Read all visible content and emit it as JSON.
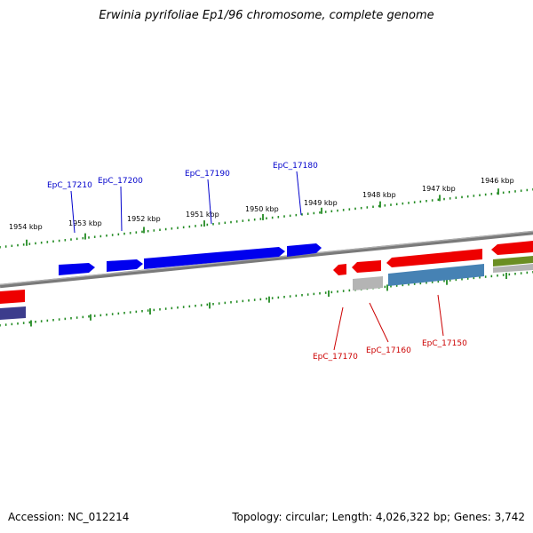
{
  "title": "Erwinia pyrifoliae Ep1/96 chromosome, complete genome",
  "footer": {
    "accession": "Accession: NC_012214",
    "summary": "Topology: circular; Length: 4,026,322 bp; Genes: 3,742"
  },
  "colors": {
    "backbone": "#7a7a7a",
    "tick": "#228b22",
    "forward_label": "#0000cc",
    "reverse_label": "#cc0000",
    "blue_gene": "#0000ee",
    "red_gene": "#ee0000",
    "grey_gene": "#b4b4b4",
    "steel_gene": "#4682b4",
    "navy_gene": "#3c3c8c",
    "olive_gene": "#6b8e23"
  },
  "upper_scale_kbp": [
    {
      "label": "1954 kbp"
    },
    {
      "label": "1953 kbp"
    },
    {
      "label": "1952 kbp"
    },
    {
      "label": "1951 kbp"
    },
    {
      "label": "1950 kbp"
    },
    {
      "label": "1949 kbp"
    },
    {
      "label": "1948 kbp"
    },
    {
      "label": "1947 kbp"
    },
    {
      "label": "1946 kbp"
    }
  ],
  "forward_gene_labels": [
    "EpC_17210",
    "EpC_17200",
    "EpC_17190",
    "EpC_17180"
  ],
  "reverse_gene_labels": [
    "EpC_17170",
    "EpC_17160",
    "EpC_17150"
  ]
}
